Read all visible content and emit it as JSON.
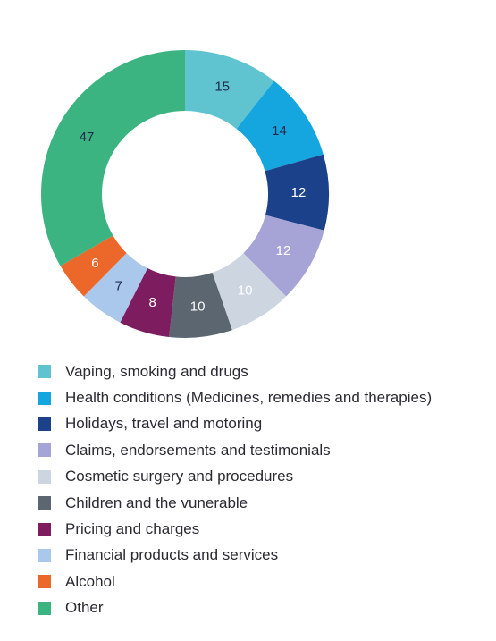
{
  "chart_data": {
    "type": "pie",
    "donut": true,
    "labels": [
      "Vaping, smoking and drugs",
      "Health conditions (Medicines, remedies and therapies)",
      "Holidays, travel and motoring",
      "Claims, endorsements and testimonials",
      "Cosmetic surgery and procedures",
      "Children and the vunerable",
      "Pricing and charges",
      "Financial products and services",
      "Alcohol",
      "Other"
    ],
    "values": [
      15,
      14,
      12,
      12,
      10,
      10,
      8,
      7,
      6,
      47
    ],
    "colors": [
      "#5fc3d0",
      "#16a6df",
      "#1a4189",
      "#a6a3d6",
      "#cdd5e1",
      "#5b6670",
      "#7d1c5f",
      "#a9c8ec",
      "#ec672a",
      "#3cb482"
    ],
    "label_colors": [
      "#1e2a4a",
      "#1e2a4a",
      "#ffffff",
      "#ffffff",
      "#ffffff",
      "#ffffff",
      "#ffffff",
      "#1e2a4a",
      "#ffffff",
      "#1e2a4a"
    ],
    "legend_position": "bottom"
  }
}
